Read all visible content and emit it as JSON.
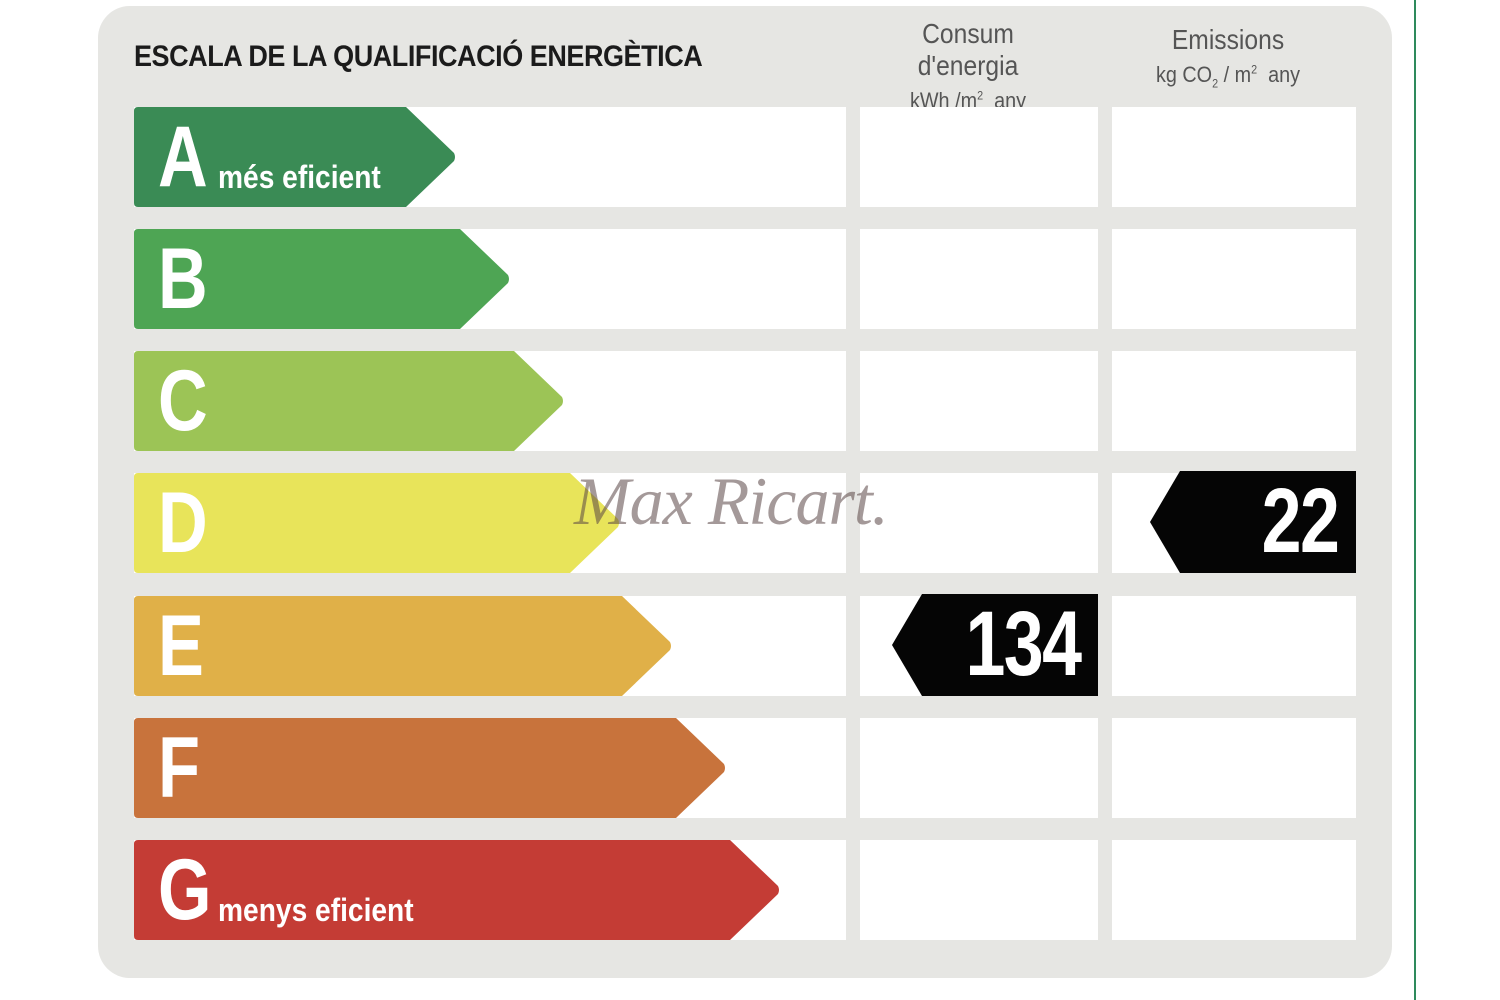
{
  "title": "ESCALA DE LA QUALIFICACIÓ ENERGÈTICA",
  "columns": {
    "consumption": {
      "heading": "Consum d'energia",
      "unit_prefix": "kWh /m",
      "unit_exp": "2",
      "unit_suffix": "any"
    },
    "emissions": {
      "heading": "Emissions",
      "unit_prefix": "kg CO",
      "unit_sub": "2",
      "unit_mid": " / m",
      "unit_exp": "2",
      "unit_suffix": "any"
    }
  },
  "grades": [
    {
      "letter": "A",
      "label": "més eficient",
      "color": "#3a8b55"
    },
    {
      "letter": "B",
      "label": "",
      "color": "#4ea554"
    },
    {
      "letter": "C",
      "label": "",
      "color": "#9cc456"
    },
    {
      "letter": "D",
      "label": "",
      "color": "#e8e45a"
    },
    {
      "letter": "E",
      "label": "",
      "color": "#e0b048"
    },
    {
      "letter": "F",
      "label": "",
      "color": "#c8733c"
    },
    {
      "letter": "G",
      "label": "menys eficient",
      "color": "#c43c35"
    }
  ],
  "ratings": {
    "consumption": {
      "value": "134",
      "grade": "E"
    },
    "emissions": {
      "value": "22",
      "grade": "D"
    }
  },
  "watermark": "Max Ricart."
}
